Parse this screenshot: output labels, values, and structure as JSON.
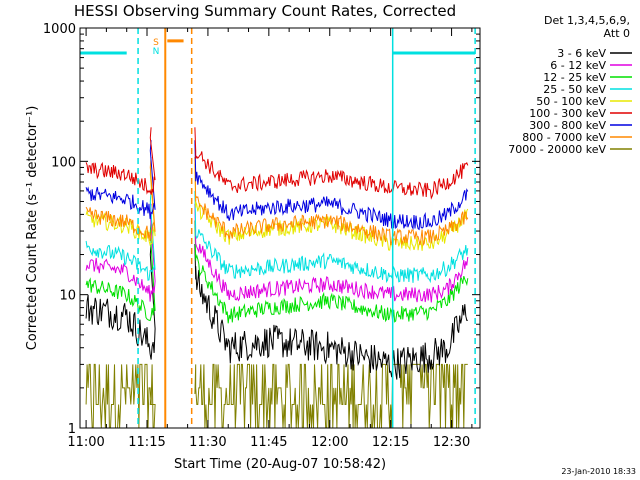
{
  "chart_data": {
    "type": "line",
    "title": "HESSI Observing Summary Count Rates, Corrected",
    "xlabel": "Start Time (20-Aug-07 10:58:42)",
    "ylabel": "Corrected Count Rate (s⁻¹ detector⁻¹)",
    "x_unit": "minutes after 11:00 UT",
    "xlim": [
      -1.5,
      97
    ],
    "ylim": [
      1,
      1000
    ],
    "yscale": "log",
    "x_ticks": [
      {
        "t": 0,
        "label": "11:00"
      },
      {
        "t": 15,
        "label": "11:15"
      },
      {
        "t": 30,
        "label": "11:30"
      },
      {
        "t": 45,
        "label": "11:45"
      },
      {
        "t": 60,
        "label": "12:00"
      },
      {
        "t": 75,
        "label": "12:15"
      },
      {
        "t": 90,
        "label": "12:30"
      }
    ],
    "y_ticks": [
      {
        "v": 1,
        "label": "1"
      },
      {
        "v": 10,
        "label": "10"
      },
      {
        "v": 100,
        "label": "100"
      },
      {
        "v": 1000,
        "label": "1000"
      }
    ],
    "legend_header": [
      "Det 1,3,4,5,6,9,",
      "Att 0"
    ],
    "legend_position": "right",
    "series": [
      {
        "name": "3 - 6 keV",
        "color": "#000000",
        "t": [
          0,
          10,
          16,
          23,
          27,
          35,
          45,
          60,
          75,
          85,
          89,
          94
        ],
        "values": [
          8,
          7,
          4,
          20,
          13,
          4,
          4.5,
          4,
          3,
          3.5,
          4,
          8
        ]
      },
      {
        "name": "6 - 12 keV",
        "color": "#e000e0",
        "t": [
          0,
          10,
          16,
          23,
          27,
          35,
          45,
          60,
          75,
          85,
          89,
          94
        ],
        "values": [
          17,
          15,
          10,
          40,
          25,
          10,
          11,
          12,
          10,
          10,
          11,
          18
        ]
      },
      {
        "name": "12 - 25 keV",
        "color": "#00e000",
        "t": [
          0,
          10,
          16,
          23,
          27,
          35,
          45,
          60,
          75,
          85,
          89,
          94
        ],
        "values": [
          12,
          10,
          7,
          30,
          18,
          7,
          8,
          9,
          7,
          7.5,
          9,
          14
        ]
      },
      {
        "name": "25 - 50 keV",
        "color": "#00e0e0",
        "t": [
          0,
          10,
          16,
          23,
          27,
          35,
          45,
          60,
          75,
          85,
          89,
          94
        ],
        "values": [
          23,
          19,
          14,
          50,
          30,
          15,
          16,
          18,
          14,
          14,
          16,
          22
        ]
      },
      {
        "name": "50 - 100 keV",
        "color": "#e8e800",
        "t": [
          0,
          10,
          16,
          23,
          27,
          35,
          45,
          60,
          75,
          85,
          89,
          94
        ],
        "values": [
          37,
          33,
          26,
          80,
          45,
          27,
          31,
          34,
          24,
          24,
          28,
          40
        ]
      },
      {
        "name": "100 - 300 keV",
        "color": "#e00000",
        "t": [
          0,
          10,
          16,
          23,
          27,
          35,
          45,
          60,
          75,
          85,
          89,
          94
        ],
        "values": [
          88,
          80,
          62,
          150,
          120,
          65,
          70,
          78,
          63,
          60,
          70,
          90
        ]
      },
      {
        "name": "300 - 800 keV",
        "color": "#0000e0",
        "t": [
          0,
          10,
          16,
          23,
          27,
          35,
          45,
          60,
          75,
          85,
          89,
          94
        ],
        "values": [
          58,
          52,
          42,
          120,
          80,
          40,
          45,
          48,
          36,
          35,
          40,
          57
        ]
      },
      {
        "name": "800 - 7000 keV",
        "color": "#ff8800",
        "t": [
          0,
          10,
          16,
          23,
          27,
          35,
          45,
          60,
          75,
          85,
          89,
          94
        ],
        "values": [
          40,
          35,
          28,
          90,
          50,
          29,
          33,
          36,
          27,
          27,
          30,
          39
        ]
      },
      {
        "name": "7000 - 20000 keV",
        "color": "#808000",
        "t": [
          0,
          10,
          16,
          23,
          27,
          35,
          45,
          60,
          75,
          85,
          89,
          94
        ],
        "values": [
          2.5,
          2,
          2,
          1.5,
          3,
          1.5,
          1.5,
          1.5,
          1.5,
          1.5,
          2,
          3.5
        ]
      }
    ],
    "markers": {
      "cyan_vlines": [
        12.8,
        75.5,
        95.8
      ],
      "orange_solid_vline": 19.5,
      "orange_dashed_vline": 26,
      "cyan_bar_segments": [
        [
          -1.5,
          10
        ],
        [
          75.5,
          95.8
        ]
      ],
      "cyan_bar_value": 650,
      "orange_bar_segment": [
        20,
        24
      ],
      "orange_bar_value": 800,
      "flag_labels": [
        {
          "text": "S",
          "color": "#ff8800"
        },
        {
          "text": "N",
          "color": "#00e0e0"
        }
      ]
    }
  },
  "footer_timestamp": "23-Jan-2010 18:33"
}
